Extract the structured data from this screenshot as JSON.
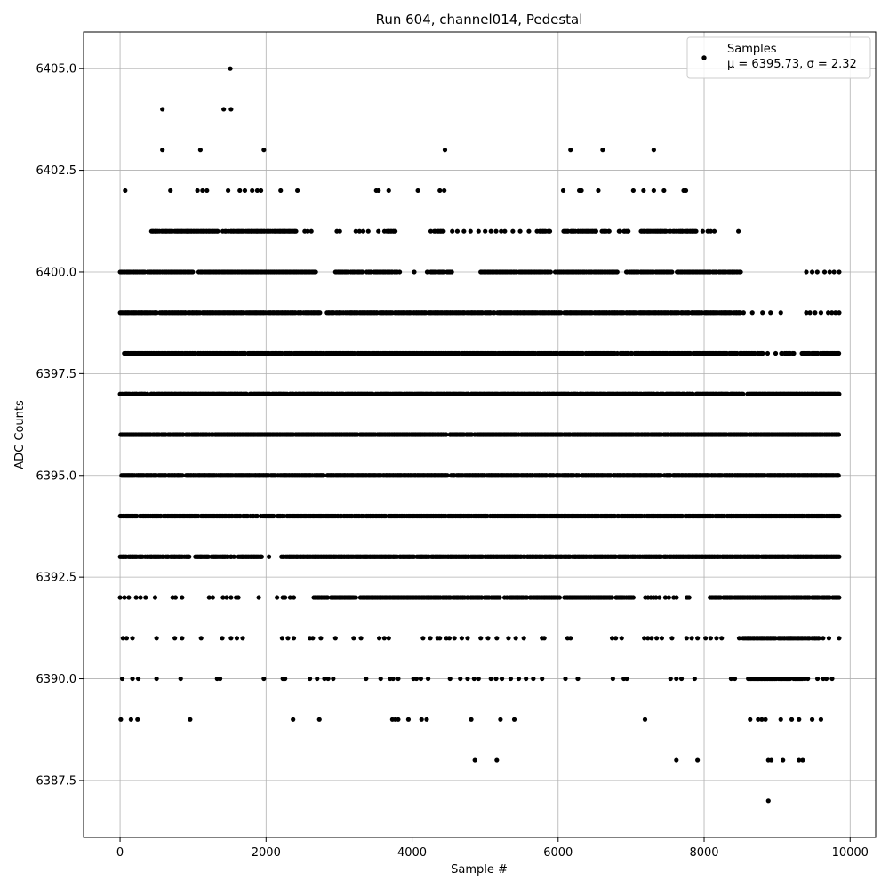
{
  "chart_data": {
    "type": "scatter",
    "title": "Run 604, channel014, Pedestal",
    "xlabel": "Sample #",
    "ylabel": "ADC Counts",
    "xlim": [
      -500,
      10350
    ],
    "ylim": [
      6386.1,
      6405.9
    ],
    "x_ticks": [
      0,
      2000,
      4000,
      6000,
      8000,
      10000
    ],
    "x_tick_labels": [
      "0",
      "2000",
      "4000",
      "6000",
      "8000",
      "10000"
    ],
    "y_ticks": [
      6387.5,
      6390.0,
      6392.5,
      6395.0,
      6397.5,
      6400.0,
      6402.5,
      6405.0
    ],
    "y_tick_labels": [
      "6387.5",
      "6390.0",
      "6392.5",
      "6395.0",
      "6397.5",
      "6400.0",
      "6402.5",
      "6405.0"
    ],
    "grid": true,
    "legend_position": "top-right",
    "marker_color": "#000000",
    "series": [
      {
        "name": "Samples",
        "stats_label": "μ = 6395.73, σ = 2.32",
        "band_levels": [
          {
            "y": 6387,
            "x": [
              8880
            ]
          },
          {
            "y": 6388,
            "x": [
              4860,
              5160,
              7620,
              7910,
              8880,
              8920,
              9080,
              9300,
              9350
            ]
          },
          {
            "y": 6389,
            "x": [
              10,
              150,
              240,
              960,
              2370,
              2730,
              3730,
              3770,
              3810,
              3950,
              4130,
              4200,
              4810,
              5210,
              5400,
              7190,
              8630,
              8740,
              8790,
              8840,
              9050,
              9200,
              9300,
              9480,
              9600
            ]
          },
          {
            "y": 6390,
            "x": [
              30,
              170,
              250,
              500,
              830,
              1330,
              1370,
              1970,
              2230,
              2260,
              2600,
              2700,
              2800,
              2850,
              2920,
              3370,
              3570,
              3700,
              3740,
              3810,
              4020,
              4060,
              4120,
              4220,
              4520,
              4660,
              4760,
              4850,
              4910,
              5080,
              5150,
              5230,
              5350,
              5460,
              5560,
              5660,
              5780,
              6100,
              6270,
              6750,
              6900,
              6940,
              7540,
              7620,
              7690,
              7870,
              8370,
              8420
            ],
            "dense_ranges": [
              [
                8600,
                9350
              ]
            ],
            "sparse_ranges": [
              [
                9380,
                9850
              ]
            ]
          },
          {
            "y": 6391,
            "x": [
              40,
              90,
              170,
              500,
              750,
              850,
              1110,
              1400,
              1520,
              1600,
              1680,
              2220,
              2300,
              2380,
              2600,
              2640,
              2750,
              2950,
              3200,
              3300,
              3550,
              3620,
              3680,
              4150,
              4250,
              4350,
              4380,
              4470,
              4510,
              4580,
              4680,
              4760,
              4940,
              5040,
              5160,
              5320,
              5420,
              5530,
              5780,
              5810,
              6130,
              6170,
              6740,
              6790,
              6870,
              7180,
              7230,
              7280,
              7350,
              7420,
              7560,
              7760,
              7830,
              7910,
              8020,
              8090,
              8170,
              8240,
              9630,
              9710,
              9850
            ],
            "dense_ranges": [
              [
                8480,
                9580
              ]
            ]
          },
          {
            "y": 6392,
            "x": [
              0,
              60,
              120,
              220,
              280,
              350,
              480,
              720,
              760,
              850,
              1220,
              1270,
              1410,
              1460,
              1520,
              1590,
              1620,
              1900,
              2150,
              2230,
              2260,
              2330,
              2380
            ],
            "dense_ranges": [
              [
                2650,
                3230
              ],
              [
                3290,
                5210
              ],
              [
                5260,
                6020
              ],
              [
                6080,
                7030
              ],
              [
                7760,
                7800
              ],
              [
                8080,
                9850
              ]
            ],
            "sparse_ranges": [
              [
                7180,
                7660
              ]
            ]
          },
          {
            "y": 6393,
            "dense_ranges": [
              [
                0,
                950
              ],
              [
                1030,
                1210
              ],
              [
                1250,
                1560
              ],
              [
                1620,
                1940
              ],
              [
                2210,
                9850
              ]
            ],
            "x": [
              2040
            ]
          },
          {
            "y": 6394,
            "dense_ranges": [
              [
                0,
                1880
              ],
              [
                1910,
                9850
              ]
            ]
          },
          {
            "y": 6395,
            "dense_ranges": [
              [
                0,
                9850
              ]
            ]
          },
          {
            "y": 6396,
            "dense_ranges": [
              [
                0,
                9850
              ]
            ]
          },
          {
            "y": 6397,
            "dense_ranges": [
              [
                0,
                9850
              ]
            ]
          },
          {
            "y": 6398,
            "dense_ranges": [
              [
                50,
                8810
              ],
              [
                9050,
                9240
              ],
              [
                9330,
                9850
              ]
            ],
            "x": [
              8870,
              8980
            ]
          },
          {
            "y": 6399,
            "dense_ranges": [
              [
                0,
                2750
              ],
              [
                2830,
                8500
              ]
            ],
            "x": [
              8540,
              8660,
              8800,
              8910,
              9050,
              9400,
              9450,
              9520,
              9600,
              9700,
              9750,
              9800,
              9850
            ]
          },
          {
            "y": 6400,
            "dense_ranges": [
              [
                0,
                1000
              ],
              [
                1060,
                2680
              ],
              [
                2950,
                3320
              ],
              [
                3360,
                3800
              ],
              [
                4200,
                4550
              ],
              [
                4930,
                5900
              ],
              [
                5960,
                6820
              ],
              [
                6930,
                7560
              ],
              [
                7620,
                8500
              ]
            ],
            "x": [
              3830,
              4030,
              9400,
              9480,
              9550,
              9650,
              9720,
              9780,
              9850
            ]
          },
          {
            "y": 6401,
            "dense_ranges": [
              [
                420,
                1340
              ],
              [
                1400,
                2410
              ],
              [
                3620,
                3770
              ],
              [
                4250,
                4440
              ],
              [
                5710,
                5890
              ],
              [
                6070,
                6520
              ],
              [
                6620,
                6700
              ],
              [
                6830,
                6970
              ],
              [
                7110,
                7480
              ],
              [
                7570,
                7890
              ]
            ],
            "x": [
              930,
              2530,
              2570,
              2620,
              2970,
              3010,
              3230,
              3280,
              3330,
              3400,
              3540,
              4550,
              4620,
              4710,
              4800,
              4910,
              5000,
              5080,
              5150,
              5220,
              5270,
              5380,
              5480,
              5600,
              6600,
              7520,
              7540,
              7700,
              7980,
              8050,
              8090,
              8140,
              8470
            ]
          },
          {
            "y": 6402,
            "x": [
              70,
              690,
              1060,
              1130,
              1190,
              1480,
              1640,
              1710,
              1810,
              1880,
              1930,
              2200,
              2430,
              3510,
              3540,
              3680,
              4080,
              4380,
              4440,
              6070,
              6290,
              6310,
              6320,
              6550,
              7030,
              7170,
              7310,
              7450,
              7720,
              7750
            ]
          },
          {
            "y": 6403,
            "x": [
              580,
              1100,
              1970,
              4450,
              6170,
              6610,
              7310
            ]
          },
          {
            "y": 6404,
            "x": [
              580,
              1420,
              1520
            ]
          },
          {
            "y": 6405,
            "x": [
              1510
            ]
          }
        ]
      }
    ]
  }
}
